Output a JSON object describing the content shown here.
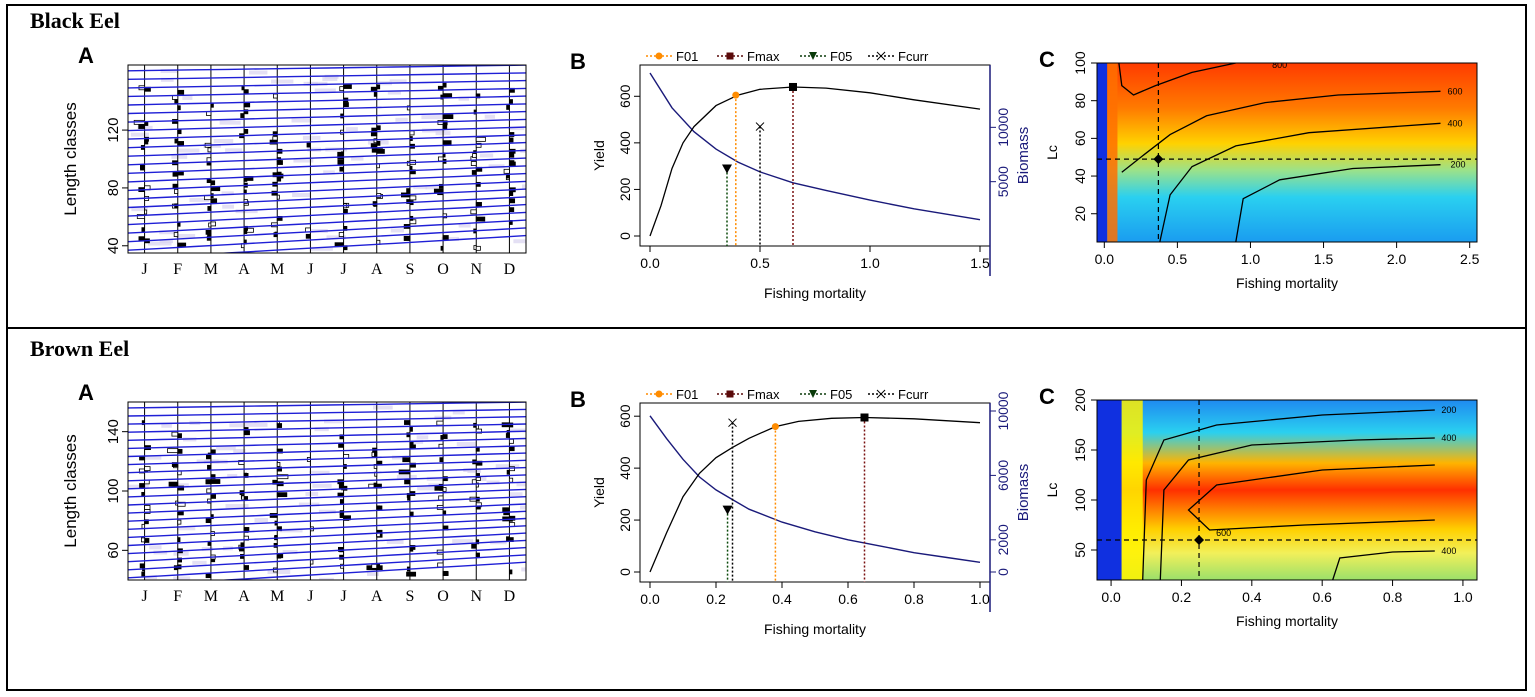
{
  "figure": {
    "panels": [
      {
        "species": "Black Eel",
        "panel_a": {
          "letter": "A",
          "ylabel": "Length classes",
          "yticks": [
            40,
            80,
            120
          ],
          "ylim": [
            35,
            165
          ],
          "months": [
            "J",
            "F",
            "M",
            "A",
            "M",
            "J",
            "J",
            "A",
            "S",
            "O",
            "N",
            "D"
          ],
          "growth_curve_color": "#1f1fd6"
        },
        "panel_b": {
          "letter": "B",
          "xlabel": "Fishing mortality",
          "ylabel_left": "Yield",
          "ylabel_right": "Biomass",
          "xticks": [
            0.0,
            0.5,
            1.0,
            1.5
          ],
          "xtick_labels": [
            "0.0",
            "0.5",
            "1.0",
            "1.5"
          ],
          "yticks": [
            0,
            200,
            400,
            600
          ],
          "y2ticks": [
            5000,
            10000
          ],
          "xlim": [
            0,
            1.5
          ],
          "ylim": [
            0,
            700
          ],
          "y2lim": [
            0,
            15000
          ],
          "legend": [
            {
              "label": "F01",
              "color": "#ff8c00",
              "marker": "circle"
            },
            {
              "label": "Fmax",
              "color": "#5a0a0a",
              "marker": "square"
            },
            {
              "label": "F05",
              "color": "#0a3a0a",
              "marker": "triangle"
            },
            {
              "label": "Fcurr",
              "color": "#000000",
              "marker": "x"
            }
          ],
          "yield_curve": {
            "x": [
              0,
              0.05,
              0.1,
              0.15,
              0.2,
              0.3,
              0.4,
              0.5,
              0.65,
              0.8,
              1.0,
              1.2,
              1.5
            ],
            "y": [
              0,
              130,
              290,
              400,
              470,
              560,
              605,
              630,
              640,
              635,
              615,
              585,
              545
            ]
          },
          "biomass_curve": {
            "x": [
              0,
              0.1,
              0.2,
              0.3,
              0.4,
              0.5,
              0.65,
              0.8,
              1.0,
              1.2,
              1.5
            ],
            "y": [
              15000,
              11800,
              9600,
              8000,
              6800,
              5900,
              4900,
              4200,
              3300,
              2500,
              1500
            ]
          },
          "ref_points": [
            {
              "name": "F05",
              "x": 0.35,
              "y": 290
            },
            {
              "name": "F01",
              "x": 0.39,
              "y": 605
            },
            {
              "name": "Fcurr",
              "x": 0.5,
              "y": 470
            },
            {
              "name": "Fmax",
              "x": 0.65,
              "y": 640
            }
          ]
        },
        "panel_c": {
          "letter": "C",
          "xlabel": "Fishing mortality",
          "ylabel": "Lc",
          "xticks": [
            0.0,
            0.5,
            1.0,
            1.5,
            2.0,
            2.5
          ],
          "xtick_labels": [
            "0.0",
            "0.5",
            "1.0",
            "1.5",
            "2.0",
            "2.5"
          ],
          "yticks": [
            20,
            40,
            60,
            80,
            100
          ],
          "xlim": [
            -0.05,
            2.55
          ],
          "ylim": [
            5,
            100
          ],
          "contour_labels": [
            "800",
            "600",
            "400",
            "200"
          ],
          "current": {
            "F": 0.37,
            "Lc": 49
          }
        }
      },
      {
        "species": "Brown Eel",
        "panel_a": {
          "letter": "A",
          "ylabel": "Length classes",
          "yticks": [
            60,
            100,
            140
          ],
          "ylim": [
            40,
            160
          ],
          "months": [
            "J",
            "F",
            "M",
            "A",
            "M",
            "J",
            "J",
            "A",
            "S",
            "O",
            "N",
            "D"
          ],
          "growth_curve_color": "#1f1fd6"
        },
        "panel_b": {
          "letter": "B",
          "xlabel": "Fishing mortality",
          "ylabel_left": "Yield",
          "ylabel_right": "Biomass",
          "xticks": [
            0.0,
            0.2,
            0.4,
            0.6,
            0.8,
            1.0
          ],
          "xtick_labels": [
            "0.0",
            "0.2",
            "0.4",
            "0.6",
            "0.8",
            "1.0"
          ],
          "yticks": [
            0,
            200,
            400,
            600
          ],
          "y2ticks": [
            0,
            2000,
            6000,
            10000
          ],
          "xlim": [
            0,
            1.0
          ],
          "ylim": [
            0,
            620
          ],
          "y2lim": [
            0,
            10000
          ],
          "legend": [
            {
              "label": "F01",
              "color": "#ff8c00",
              "marker": "circle"
            },
            {
              "label": "Fmax",
              "color": "#5a0a0a",
              "marker": "square"
            },
            {
              "label": "F05",
              "color": "#0a3a0a",
              "marker": "triangle"
            },
            {
              "label": "Fcurr",
              "color": "#000000",
              "marker": "x"
            }
          ],
          "yield_curve": {
            "x": [
              0,
              0.05,
              0.1,
              0.15,
              0.2,
              0.25,
              0.3,
              0.38,
              0.45,
              0.55,
              0.65,
              0.8,
              1.0
            ],
            "y": [
              0,
              150,
              290,
              380,
              440,
              480,
              515,
              560,
              580,
              592,
              595,
              590,
              575
            ]
          },
          "biomass_curve": {
            "x": [
              0,
              0.05,
              0.1,
              0.15,
              0.2,
              0.25,
              0.3,
              0.4,
              0.5,
              0.6,
              0.7,
              0.8,
              0.9,
              1.0
            ],
            "y": [
              9700,
              8300,
              7000,
              5900,
              5100,
              4500,
              3900,
              3100,
              2500,
              2000,
              1600,
              1200,
              900,
              600
            ]
          },
          "ref_points": [
            {
              "name": "F05",
              "x": 0.235,
              "y": 240
            },
            {
              "name": "Fcurr",
              "x": 0.25,
              "y": 575
            },
            {
              "name": "F01",
              "x": 0.38,
              "y": 560
            },
            {
              "name": "Fmax",
              "x": 0.65,
              "y": 595
            }
          ]
        },
        "panel_c": {
          "letter": "C",
          "xlabel": "Fishing mortality",
          "ylabel": "Lc",
          "xticks": [
            0.0,
            0.2,
            0.4,
            0.6,
            0.8,
            1.0
          ],
          "xtick_labels": [
            "0.0",
            "0.2",
            "0.4",
            "0.6",
            "0.8",
            "1.0"
          ],
          "yticks": [
            50,
            100,
            150,
            200
          ],
          "xlim": [
            -0.04,
            1.04
          ],
          "ylim": [
            20,
            200
          ],
          "contour_labels": [
            "200",
            "400",
            "600",
            "400"
          ],
          "current": {
            "F": 0.25,
            "Lc": 60
          }
        }
      }
    ]
  },
  "chart_data": [
    {
      "type": "line",
      "title": "Black Eel B",
      "xlabel": "Fishing mortality",
      "ylabel": "Yield",
      "y2label": "Biomass",
      "series": [
        {
          "name": "Yield",
          "x": [
            0,
            0.1,
            0.2,
            0.3,
            0.4,
            0.5,
            0.65,
            0.8,
            1.0,
            1.2,
            1.5
          ],
          "values": [
            0,
            290,
            470,
            560,
            605,
            630,
            640,
            635,
            615,
            585,
            545
          ]
        },
        {
          "name": "Biomass",
          "x": [
            0,
            0.1,
            0.2,
            0.3,
            0.4,
            0.5,
            0.65,
            0.8,
            1.0,
            1.2,
            1.5
          ],
          "values": [
            15000,
            11800,
            9600,
            8000,
            6800,
            5900,
            4900,
            4200,
            3300,
            2500,
            1500
          ]
        }
      ],
      "reference_points": {
        "F05": 0.35,
        "F01": 0.39,
        "Fcurr": 0.5,
        "Fmax": 0.65
      }
    },
    {
      "type": "heatmap",
      "title": "Black Eel C",
      "xlabel": "Fishing mortality",
      "ylabel": "Lc",
      "xlim": [
        0,
        2.5
      ],
      "ylim": [
        5,
        100
      ],
      "contours": [
        200,
        400,
        600,
        800
      ],
      "current": {
        "F": 0.37,
        "Lc": 49
      }
    },
    {
      "type": "line",
      "title": "Brown Eel B",
      "xlabel": "Fishing mortality",
      "ylabel": "Yield",
      "y2label": "Biomass",
      "series": [
        {
          "name": "Yield",
          "x": [
            0,
            0.1,
            0.2,
            0.3,
            0.38,
            0.5,
            0.65,
            0.8,
            1.0
          ],
          "values": [
            0,
            290,
            440,
            515,
            560,
            588,
            595,
            590,
            575
          ]
        },
        {
          "name": "Biomass",
          "x": [
            0,
            0.1,
            0.2,
            0.3,
            0.4,
            0.5,
            0.6,
            0.8,
            1.0
          ],
          "values": [
            9700,
            7000,
            5100,
            3900,
            3100,
            2500,
            2000,
            1200,
            600
          ]
        }
      ],
      "reference_points": {
        "F05": 0.235,
        "Fcurr": 0.25,
        "F01": 0.38,
        "Fmax": 0.65
      }
    },
    {
      "type": "heatmap",
      "title": "Brown Eel C",
      "xlabel": "Fishing mortality",
      "ylabel": "Lc",
      "xlim": [
        0,
        1.0
      ],
      "ylim": [
        20,
        200
      ],
      "contours": [
        200,
        400,
        600
      ],
      "current": {
        "F": 0.25,
        "Lc": 60
      }
    }
  ]
}
